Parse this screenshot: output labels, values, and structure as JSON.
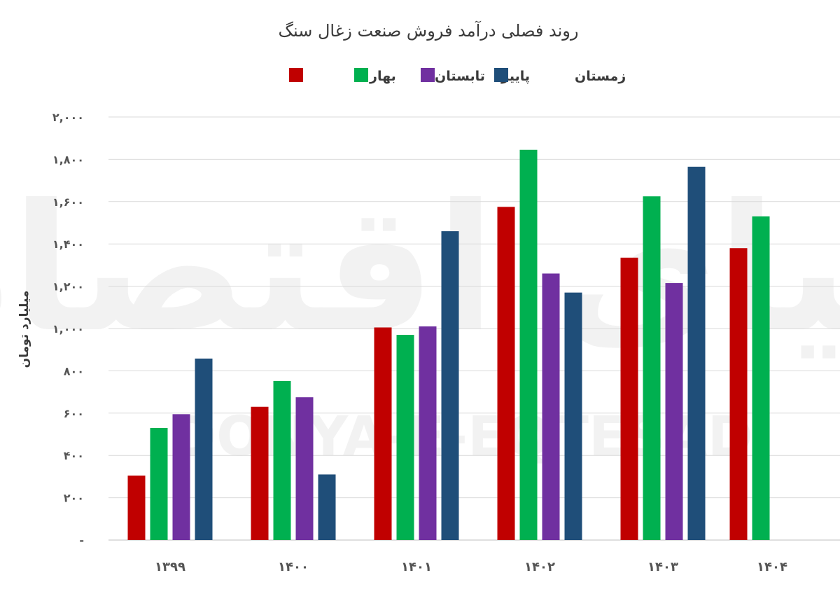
{
  "chart_data": {
    "type": "bar",
    "title": "روند فصلی درآمد فروش صنعت زغال سنگ",
    "ylabel": "میلیارد تومان",
    "xlabel": "",
    "ylim": [
      0,
      2000
    ],
    "yticks": [
      0,
      200,
      400,
      600,
      800,
      1000,
      1200,
      1400,
      1600,
      1800,
      2000
    ],
    "ytick_labels": [
      "-",
      "۲۰۰",
      "۴۰۰",
      "۶۰۰",
      "۸۰۰",
      "۱,۰۰۰",
      "۱,۲۰۰",
      "۱,۴۰۰",
      "۱,۶۰۰",
      "۱,۸۰۰",
      "۲,۰۰۰"
    ],
    "categories": [
      "۱۳۹۹",
      "۱۴۰۰",
      "۱۴۰۱",
      "۱۴۰۲",
      "۱۴۰۳",
      "۱۴۰۴"
    ],
    "legend_position": "top-center",
    "grid": true,
    "series": [
      {
        "name": "بهار",
        "color": "#c00000",
        "values": [
          305,
          630,
          1005,
          1575,
          1335,
          1380
        ]
      },
      {
        "name": "تابستان",
        "color": "#00b050",
        "values": [
          530,
          752,
          970,
          1845,
          1625,
          1530
        ]
      },
      {
        "name": "پاییز",
        "color": "#7030a0",
        "values": [
          595,
          675,
          1010,
          1260,
          1215,
          null
        ]
      },
      {
        "name": "زمستان",
        "color": "#1f4e79",
        "values": [
          858,
          310,
          1460,
          1170,
          1765,
          null
        ]
      }
    ]
  },
  "watermark": {
    "brand_fa": "دنیای اقتصاد",
    "brand_en": "DONYA-E-EQTESAD"
  }
}
